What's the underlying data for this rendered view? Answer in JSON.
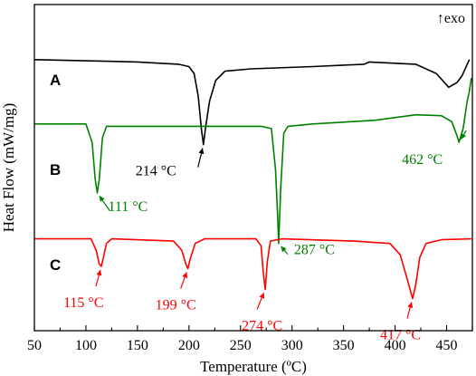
{
  "chart_data": {
    "type": "line",
    "xlabel": "Temperature (ºC)",
    "ylabel": "Heat Flow (mW/mg)",
    "xlim": [
      50,
      475
    ],
    "xticks": [
      50,
      100,
      150,
      200,
      250,
      300,
      350,
      400,
      450
    ],
    "y_ticks_shown": false,
    "grid": false,
    "corner_annotation": "↑exo",
    "colors": {
      "A": "#000000",
      "B": "#008000",
      "C": "#ff0000",
      "axes": "#000000"
    },
    "series": [
      {
        "name": "A",
        "color": "#000000",
        "baseline": 2.4,
        "points": [
          [
            50,
            2.4
          ],
          [
            150,
            2.35
          ],
          [
            190,
            2.3
          ],
          [
            200,
            2.25
          ],
          [
            205,
            2.1
          ],
          [
            209,
            1.6
          ],
          [
            212,
            0.9
          ],
          [
            214,
            0.55
          ],
          [
            216,
            0.9
          ],
          [
            220,
            1.5
          ],
          [
            226,
            1.95
          ],
          [
            235,
            2.15
          ],
          [
            260,
            2.2
          ],
          [
            320,
            2.25
          ],
          [
            370,
            2.3
          ],
          [
            375,
            2.35
          ],
          [
            420,
            2.3
          ],
          [
            440,
            2.1
          ],
          [
            452,
            1.8
          ],
          [
            460,
            1.9
          ],
          [
            465,
            2.05
          ],
          [
            472,
            2.4
          ]
        ],
        "peaks": [
          {
            "x": 214,
            "label": "214 °C"
          }
        ]
      },
      {
        "name": "B",
        "color": "#008000",
        "baseline": 1.0,
        "points": [
          [
            50,
            1.0
          ],
          [
            100,
            1.0
          ],
          [
            106,
            0.6
          ],
          [
            109,
            -0.2
          ],
          [
            111,
            -0.5
          ],
          [
            113,
            -0.2
          ],
          [
            116,
            0.7
          ],
          [
            120,
            0.95
          ],
          [
            200,
            0.95
          ],
          [
            270,
            0.95
          ],
          [
            280,
            0.9
          ],
          [
            284,
            0.0
          ],
          [
            286,
            -1.0
          ],
          [
            287,
            -1.6
          ],
          [
            289,
            -0.4
          ],
          [
            292,
            0.8
          ],
          [
            296,
            0.95
          ],
          [
            320,
            1.0
          ],
          [
            380,
            1.08
          ],
          [
            420,
            1.2
          ],
          [
            445,
            1.18
          ],
          [
            455,
            1.05
          ],
          [
            460,
            0.75
          ],
          [
            462,
            0.6
          ],
          [
            466,
            0.9
          ],
          [
            470,
            1.5
          ],
          [
            472,
            1.7
          ],
          [
            474,
            2.0
          ]
        ],
        "peaks": [
          {
            "x": 111,
            "label": "111 °C"
          },
          {
            "x": 287,
            "label": "287 °C"
          },
          {
            "x": 462,
            "label": "462 °C"
          }
        ]
      },
      {
        "name": "C",
        "color": "#ff0000",
        "baseline": -1.5,
        "points": [
          [
            50,
            -1.5
          ],
          [
            105,
            -1.5
          ],
          [
            110,
            -1.75
          ],
          [
            113,
            -2.05
          ],
          [
            115,
            -2.1
          ],
          [
            117,
            -1.9
          ],
          [
            120,
            -1.6
          ],
          [
            125,
            -1.5
          ],
          [
            185,
            -1.55
          ],
          [
            193,
            -1.75
          ],
          [
            197,
            -2.05
          ],
          [
            199,
            -2.15
          ],
          [
            201,
            -1.95
          ],
          [
            206,
            -1.6
          ],
          [
            215,
            -1.5
          ],
          [
            265,
            -1.5
          ],
          [
            270,
            -1.65
          ],
          [
            272,
            -2.2
          ],
          [
            274,
            -2.6
          ],
          [
            276,
            -2.0
          ],
          [
            279,
            -1.55
          ],
          [
            290,
            -1.5
          ],
          [
            360,
            -1.55
          ],
          [
            395,
            -1.6
          ],
          [
            405,
            -1.85
          ],
          [
            412,
            -2.4
          ],
          [
            417,
            -2.8
          ],
          [
            420,
            -2.5
          ],
          [
            424,
            -1.9
          ],
          [
            430,
            -1.6
          ],
          [
            445,
            -1.52
          ],
          [
            474,
            -1.5
          ]
        ],
        "peaks": [
          {
            "x": 115,
            "label": "115 °C"
          },
          {
            "x": 199,
            "label": "199 °C"
          },
          {
            "x": 274,
            "label": "274 °C"
          },
          {
            "x": 417,
            "label": "417 °C"
          }
        ]
      }
    ]
  }
}
